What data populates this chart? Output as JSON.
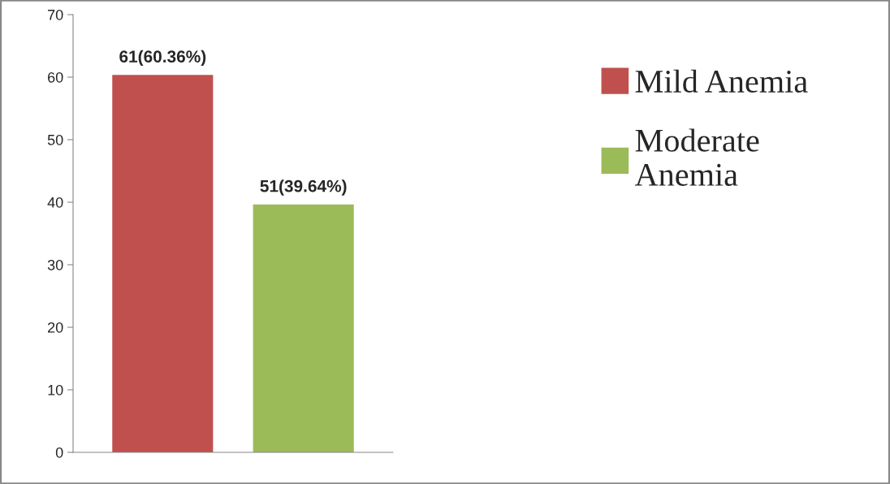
{
  "chart_data": {
    "type": "bar",
    "categories": [
      null
    ],
    "series": [
      {
        "name": "Mild Anemia",
        "color": "#c0504d",
        "values": [
          60.36
        ],
        "value_labels": [
          "61(60.36%)"
        ]
      },
      {
        "name": "Moderate Anemia",
        "color": "#9bbb59",
        "values": [
          39.64
        ],
        "value_labels": [
          "51(39.64%)"
        ]
      }
    ],
    "ylim": [
      0,
      70
    ],
    "yticks": [
      0,
      10,
      20,
      30,
      40,
      50,
      60,
      70
    ],
    "grid": false,
    "legend": "right"
  }
}
